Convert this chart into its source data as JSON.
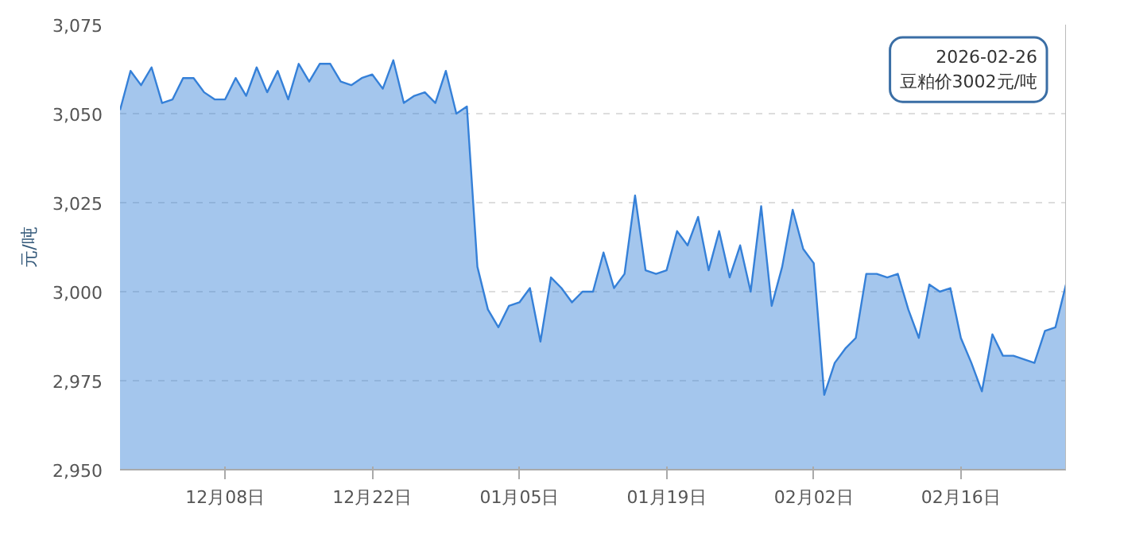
{
  "chart_data": {
    "type": "area",
    "ylabel": "元/吨",
    "x": [
      "2025-11-28",
      "2025-11-29",
      "2025-11-30",
      "2025-12-01",
      "2025-12-02",
      "2025-12-03",
      "2025-12-04",
      "2025-12-05",
      "2025-12-06",
      "2025-12-07",
      "2025-12-08",
      "2025-12-09",
      "2025-12-10",
      "2025-12-11",
      "2025-12-12",
      "2025-12-13",
      "2025-12-14",
      "2025-12-15",
      "2025-12-16",
      "2025-12-17",
      "2025-12-18",
      "2025-12-19",
      "2025-12-20",
      "2025-12-21",
      "2025-12-22",
      "2025-12-23",
      "2025-12-24",
      "2025-12-25",
      "2025-12-26",
      "2025-12-27",
      "2025-12-28",
      "2025-12-29",
      "2025-12-30",
      "2025-12-31",
      "2026-01-01",
      "2026-01-02",
      "2026-01-03",
      "2026-01-04",
      "2026-01-05",
      "2026-01-06",
      "2026-01-07",
      "2026-01-08",
      "2026-01-09",
      "2026-01-10",
      "2026-01-11",
      "2026-01-12",
      "2026-01-13",
      "2026-01-14",
      "2026-01-15",
      "2026-01-16",
      "2026-01-17",
      "2026-01-18",
      "2026-01-19",
      "2026-01-20",
      "2026-01-21",
      "2026-01-22",
      "2026-01-23",
      "2026-01-24",
      "2026-01-25",
      "2026-01-26",
      "2026-01-27",
      "2026-01-28",
      "2026-01-29",
      "2026-01-30",
      "2026-01-31",
      "2026-02-01",
      "2026-02-02",
      "2026-02-03",
      "2026-02-04",
      "2026-02-05",
      "2026-02-06",
      "2026-02-07",
      "2026-02-08",
      "2026-02-09",
      "2026-02-10",
      "2026-02-11",
      "2026-02-12",
      "2026-02-13",
      "2026-02-14",
      "2026-02-15",
      "2026-02-16",
      "2026-02-17",
      "2026-02-18",
      "2026-02-19",
      "2026-02-20",
      "2026-02-21",
      "2026-02-22",
      "2026-02-23",
      "2026-02-24",
      "2026-02-25",
      "2026-02-26"
    ],
    "series": [
      {
        "color": "#3580d8",
        "values": [
          3051,
          3062,
          3058,
          3063,
          3053,
          3054,
          3060,
          3060,
          3056,
          3054,
          3054,
          3060,
          3055,
          3063,
          3056,
          3062,
          3054,
          3064,
          3059,
          3064,
          3064,
          3059,
          3058,
          3060,
          3061,
          3057,
          3065,
          3053,
          3055,
          3056,
          3053,
          3062,
          3050,
          3052,
          3007,
          2995,
          2990,
          2996,
          2997,
          3001,
          2986,
          3004,
          3001,
          2997,
          3000,
          3000,
          3011,
          3001,
          3005,
          3027,
          3006,
          3005,
          3006,
          3017,
          3013,
          3021,
          3006,
          3017,
          3004,
          3013,
          3000,
          3024,
          2996,
          3007,
          3023,
          3012,
          3008,
          2971,
          2980,
          2984,
          2987,
          3005,
          3005,
          3004,
          3005,
          2995,
          2987,
          3002,
          3000,
          3001,
          2987,
          2980,
          2972,
          2988,
          2982,
          2982,
          2981,
          2980,
          2989,
          2990,
          3002
        ]
      }
    ],
    "xlim": [
      "2025-11-28",
      "2026-02-26"
    ],
    "xticks": [
      {
        "value": "2025-12-08",
        "label": "12月08日"
      },
      {
        "value": "2025-12-22",
        "label": "12月22日"
      },
      {
        "value": "2026-01-05",
        "label": "01月05日"
      },
      {
        "value": "2026-01-19",
        "label": "01月19日"
      },
      {
        "value": "2026-02-02",
        "label": "02月02日"
      },
      {
        "value": "2026-02-16",
        "label": "02月16日"
      }
    ],
    "ylim": [
      2950,
      3075
    ],
    "yticks": [
      {
        "value": 2950,
        "label": "2,950"
      },
      {
        "value": 2975,
        "label": "2,975"
      },
      {
        "value": 3000,
        "label": "3,000"
      },
      {
        "value": 3025,
        "label": "3,025"
      },
      {
        "value": 3050,
        "label": "3,050"
      },
      {
        "value": 3075,
        "label": "3,075"
      }
    ],
    "grid": "y",
    "ref_lines": [
      {
        "axis": "x",
        "value": "2026-02-26",
        "color": "#bbbbbb"
      }
    ],
    "annotations": [
      "2026-02-26\n豆粕价3002元/吨"
    ]
  }
}
